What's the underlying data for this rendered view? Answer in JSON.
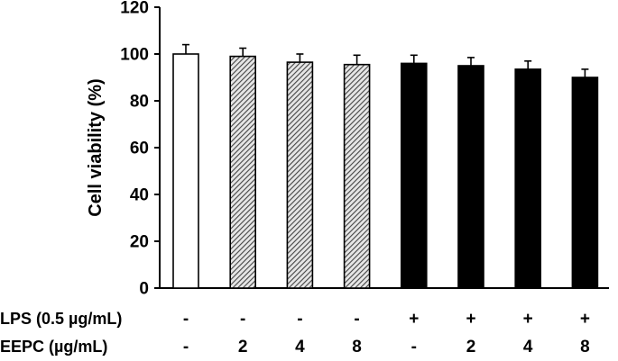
{
  "chart_data": {
    "type": "bar",
    "ylabel": "Cell viability (%)",
    "ylim": [
      0,
      120
    ],
    "yticks": [
      0,
      20,
      40,
      60,
      80,
      100,
      120
    ],
    "grid": false,
    "legend": "none",
    "conditions": [
      {
        "label": "LPS (0.5 µg/mL)",
        "values": [
          "-",
          "-",
          "-",
          "-",
          "+",
          "+",
          "+",
          "+"
        ]
      },
      {
        "label": "EEPC (µg/mL)",
        "values": [
          "-",
          "2",
          "4",
          "8",
          "-",
          "2",
          "4",
          "8"
        ]
      }
    ],
    "values": [
      100,
      99,
      96.5,
      95.5,
      96,
      95,
      93.5,
      90
    ],
    "errors": [
      4,
      3.5,
      3.5,
      4,
      3.5,
      3.5,
      3.5,
      3.5
    ],
    "bar_styles": [
      "open",
      "hatched",
      "hatched",
      "hatched",
      "filled",
      "filled",
      "filled",
      "filled"
    ]
  }
}
